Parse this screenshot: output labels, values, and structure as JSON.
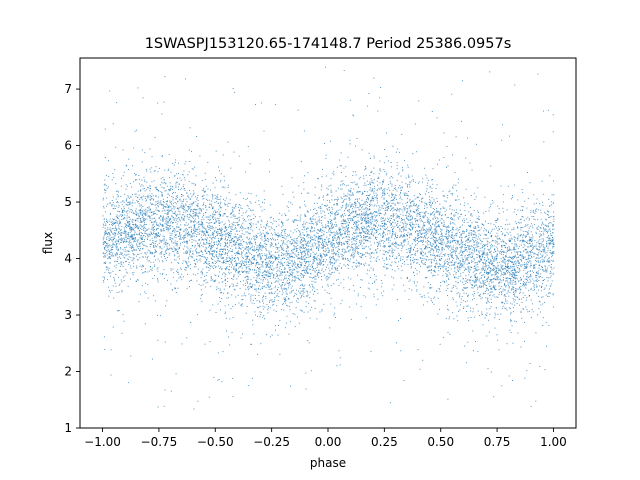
{
  "chart_data": {
    "type": "scatter",
    "title": "1SWASPJ153120.65-174148.7 Period 25386.0957s",
    "xlabel": "phase",
    "ylabel": "flux",
    "xlim": [
      -1.1,
      1.1
    ],
    "ylim": [
      1.0,
      7.55
    ],
    "xticks": [
      -1.0,
      -0.75,
      -0.5,
      -0.25,
      0.0,
      0.25,
      0.5,
      0.75,
      1.0
    ],
    "xtick_labels": [
      "−1.00",
      "−0.75",
      "−0.50",
      "−0.25",
      "0.00",
      "0.25",
      "0.50",
      "0.75",
      "1.00"
    ],
    "yticks": [
      1,
      2,
      3,
      4,
      5,
      6,
      7
    ],
    "ytick_labels": [
      "1",
      "2",
      "3",
      "4",
      "5",
      "6",
      "7"
    ],
    "grid": false,
    "legend": "none",
    "point_color": "#1f77b4",
    "series": [
      {
        "phase_range": [
          -1.0,
          1.0
        ],
        "binned_mean_flux": {
          "phase": [
            -1.0,
            -0.9,
            -0.8,
            -0.7,
            -0.6,
            -0.5,
            -0.4,
            -0.3,
            -0.2,
            -0.1,
            0.0,
            0.1,
            0.2,
            0.3,
            0.4,
            0.5,
            0.6,
            0.7,
            0.8,
            0.9,
            1.0
          ],
          "flux": [
            4.35,
            4.5,
            4.62,
            4.65,
            4.55,
            4.35,
            4.1,
            3.95,
            3.9,
            4.05,
            4.35,
            4.55,
            4.68,
            4.65,
            4.5,
            4.3,
            4.1,
            3.95,
            3.9,
            4.05,
            4.3
          ]
        },
        "core_scatter_std": 0.45,
        "flux_extent": [
          1.3,
          7.4
        ]
      }
    ]
  }
}
